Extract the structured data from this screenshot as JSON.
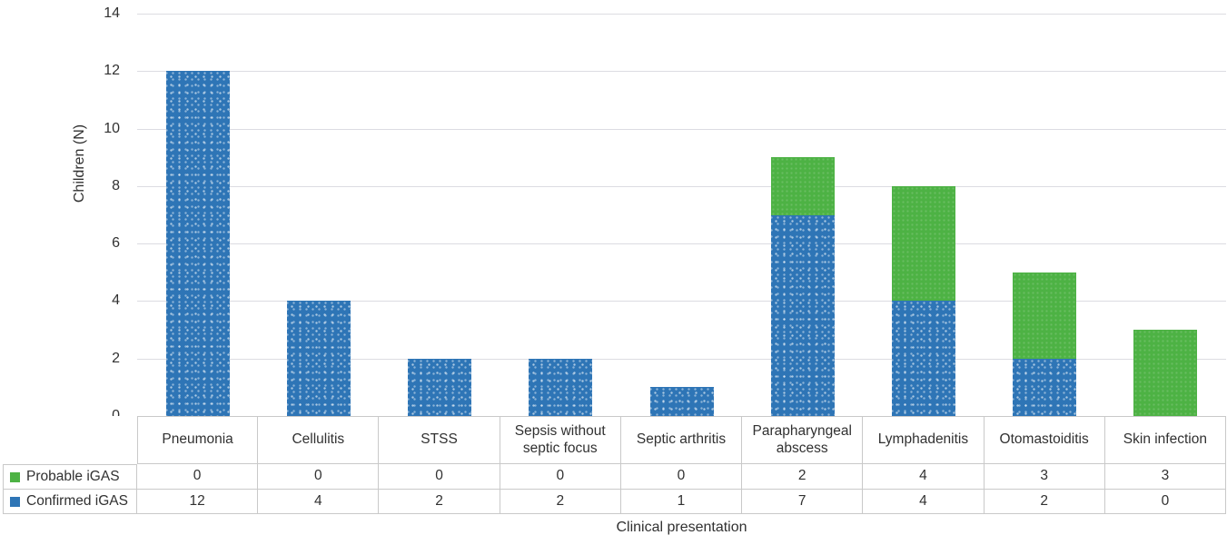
{
  "chart_data": {
    "type": "bar",
    "stacked": true,
    "title": "",
    "xlabel": "Clinical presentation",
    "ylabel": "Children (N)",
    "ylim": [
      0,
      14
    ],
    "ytick_step": 2,
    "y_tick_labels": [
      "0",
      "2",
      "4",
      "6",
      "8",
      "10",
      "12",
      "14"
    ],
    "grid": true,
    "legend_position": "left column of data table below chart",
    "categories": [
      "Pneumonia",
      "Cellulitis",
      "STSS",
      "Sepsis without septic focus",
      "Septic arthritis",
      "Parapharyngeal abscess",
      "Lymphadenitis",
      "Otomastoiditis",
      "Skin infection"
    ],
    "series": [
      {
        "name": "Probable iGAS",
        "color": "#4db244",
        "texture": "subtle",
        "values": [
          0,
          0,
          0,
          0,
          0,
          2,
          4,
          3,
          3
        ]
      },
      {
        "name": "Confirmed iGAS",
        "color": "#2e75b6",
        "texture": "dots",
        "values": [
          12,
          4,
          2,
          2,
          1,
          7,
          4,
          2,
          0
        ]
      }
    ],
    "totals_by_category": [
      12,
      4,
      2,
      2,
      1,
      9,
      8,
      5,
      3
    ],
    "colors": {
      "gridline": "#dcdce2",
      "table_border": "#c9c9c9",
      "text": "#313131",
      "background": "#ffffff"
    }
  }
}
